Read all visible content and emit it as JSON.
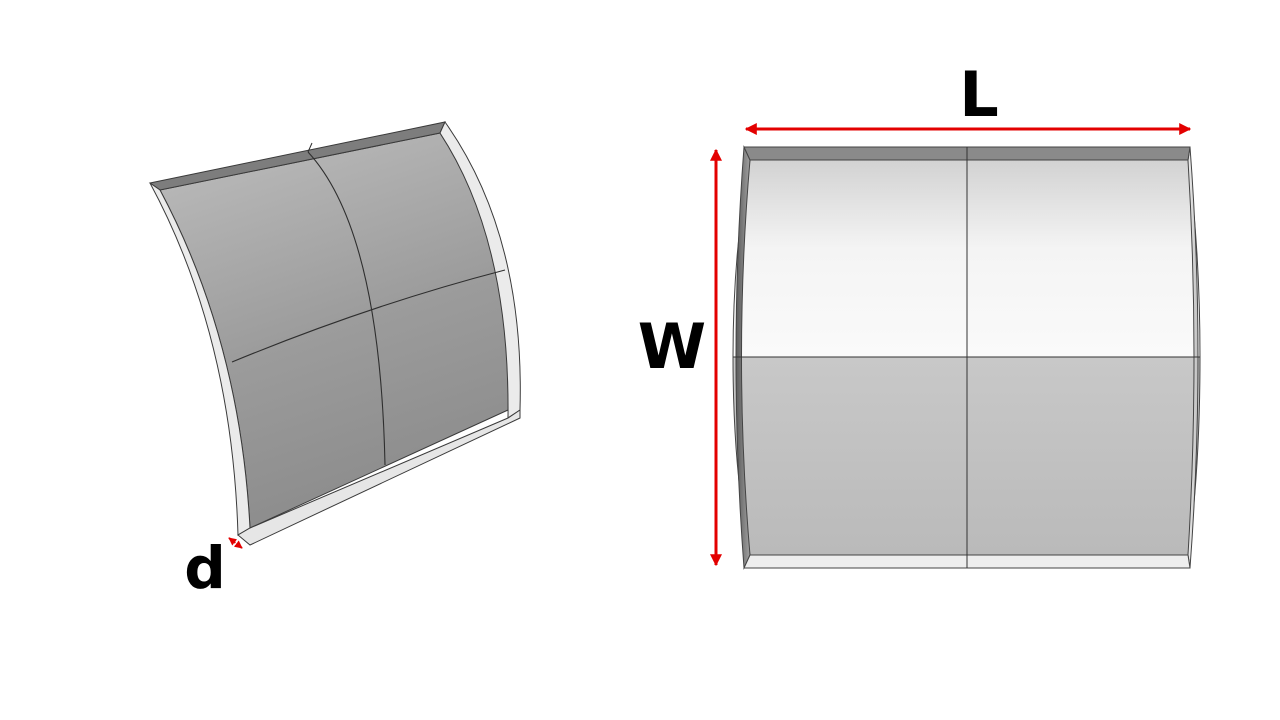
{
  "labels": {
    "length": "L",
    "width": "W",
    "thickness": "d"
  },
  "colors": {
    "dimension_arrow": "#e30000",
    "edge_line": "#3a3a3a",
    "top_edge_face": "#7d7d7d",
    "side_edge_face": "#ebebeb",
    "label_text": "#000000"
  }
}
